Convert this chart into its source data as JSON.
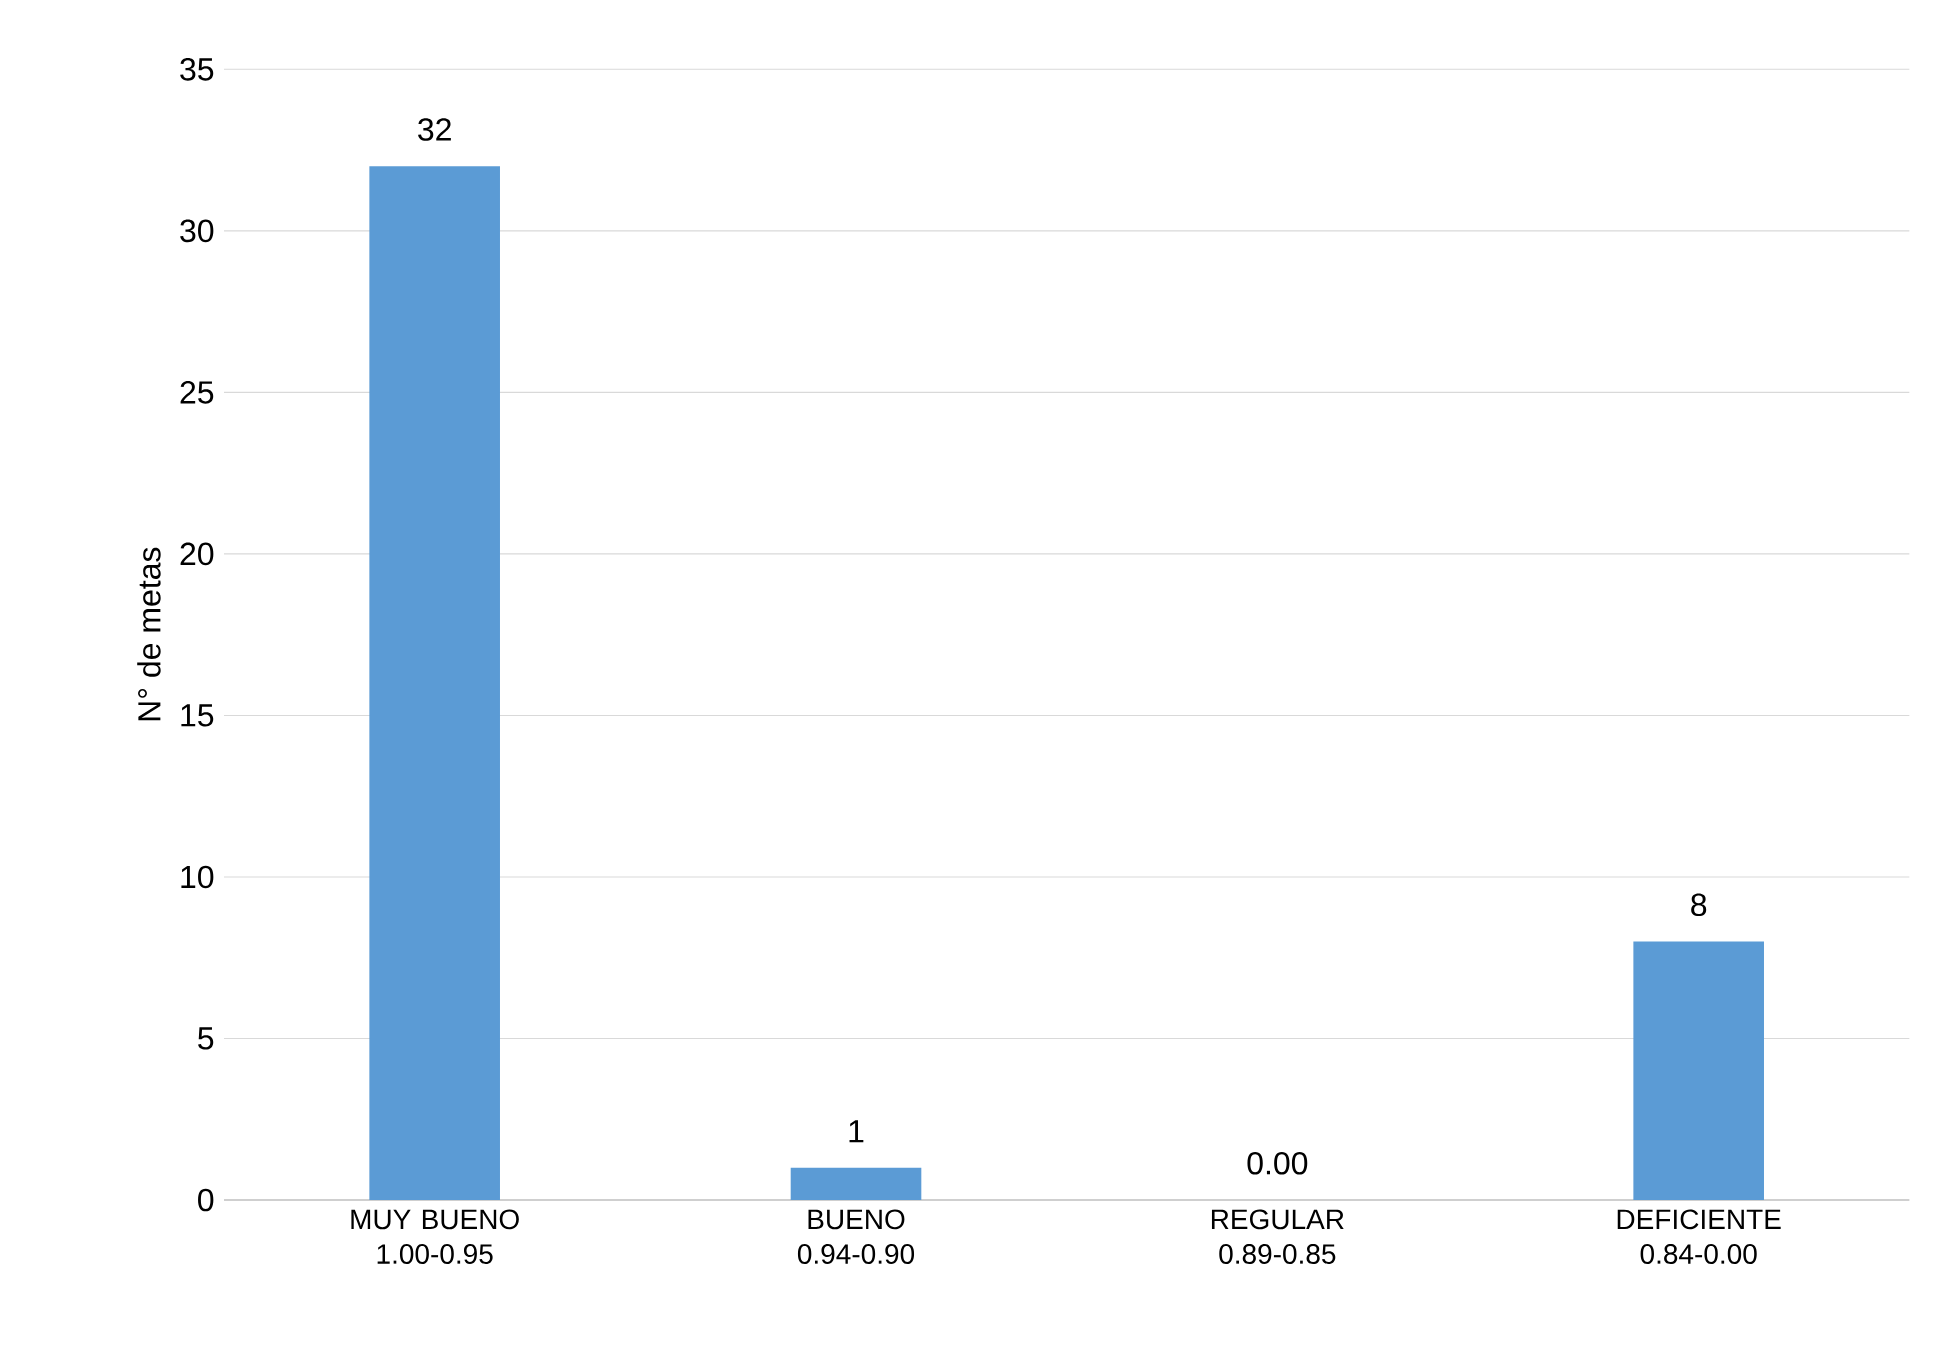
{
  "chart_data": {
    "type": "bar",
    "ylabel": "N° de metas",
    "categories": [
      "MUY BUENO 1.00-0.95",
      "BUENO 0.94-0.90",
      "REGULAR 0.89-0.85",
      "DEFICIENTE 0.84-0.00"
    ],
    "values": [
      32,
      1,
      0,
      8
    ],
    "value_labels": [
      "32",
      "1",
      "0.00",
      "8"
    ],
    "color": "#5b9bd5",
    "ylim": [
      0,
      35
    ],
    "yticks": [
      0,
      5,
      10,
      15,
      20,
      25,
      30,
      35
    ],
    "grid": "y"
  }
}
